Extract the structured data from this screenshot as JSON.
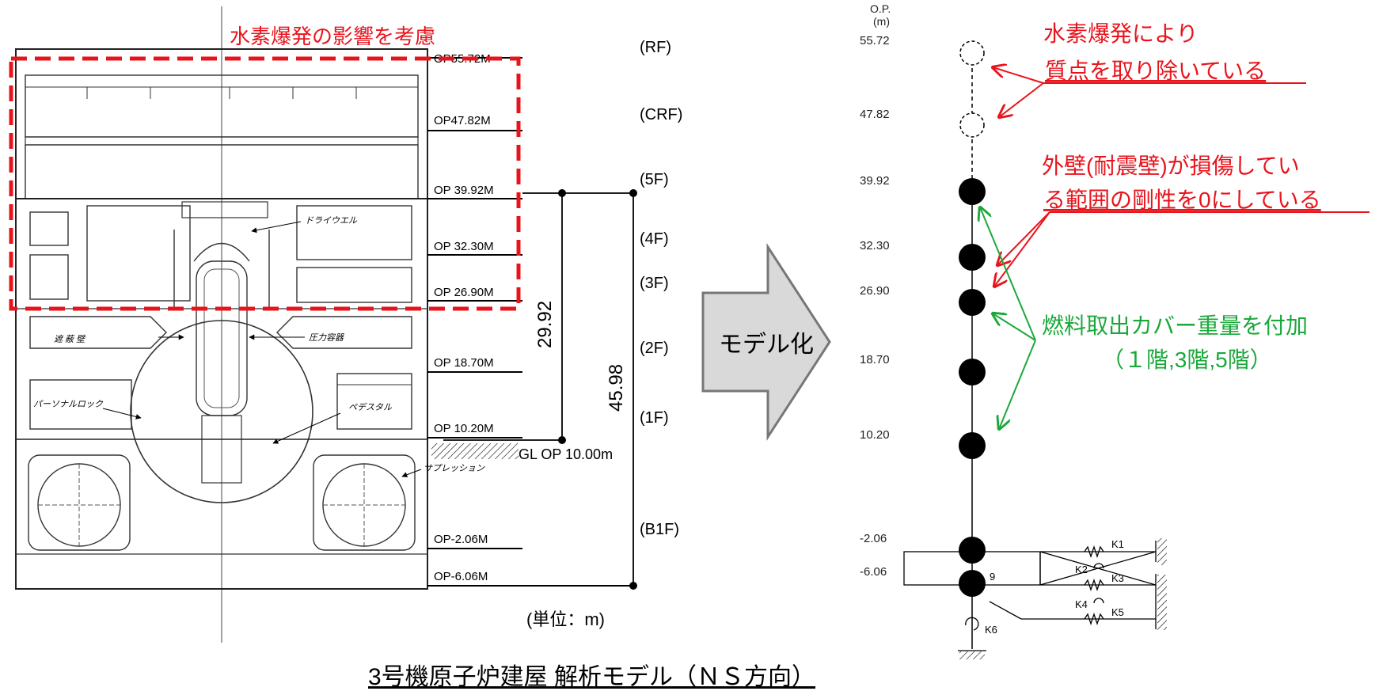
{
  "colors": {
    "annotation_red": "#e8141c",
    "annotation_green": "#1aa83a",
    "arrow_fill": "#d9d9d9",
    "arrow_stroke": "#777777",
    "line": "#000000"
  },
  "left_drawing": {
    "hydrogen_label": "水素爆発の影響を考慮",
    "op_levels": [
      "OP55.72M",
      "OP47.82M",
      "OP 39.92M",
      "OP 32.30M",
      "OP 26.90M",
      "OP 18.70M",
      "OP 10.20M",
      "OP-2.06M",
      "OP-6.06M"
    ],
    "floor_labels": [
      "(RF)",
      "(CRF)",
      "(5F)",
      "(4F)",
      "(3F)",
      "(2F)",
      "(1F)",
      "(B1F)"
    ],
    "callouts": {
      "drywell": "ドライウエル",
      "pressure_vessel": "圧力容器",
      "spent_fuel": "遮 蔽 壁",
      "personnel_lock": "パーソナルロック",
      "pedestal": "ペデスタル",
      "suppression": "サプレッション"
    },
    "dim_small": "29.92",
    "dim_large": "45.98",
    "gl_label": "GL OP 10.00m",
    "unit_label": "(単位：m)"
  },
  "center_arrow": {
    "label": "モデル化"
  },
  "right_model": {
    "header_op": "O.P.",
    "header_unit": "(m)",
    "elevations": [
      "55.72",
      "47.82",
      "39.92",
      "32.30",
      "26.90",
      "18.70",
      "10.20",
      "-2.06",
      "-6.06"
    ],
    "springs": [
      "K1",
      "K2",
      "K3",
      "K4",
      "K5",
      "K6"
    ],
    "node_number": "9",
    "annotations": {
      "removed_line1": "水素爆発により",
      "removed_line2": "質点を取り除いている",
      "stiffness_line1": "外壁(耐震壁)が損傷してい",
      "stiffness_line2": "る範囲の剛性を0にしている",
      "cover_line1": "燃料取出カバー重量を付加",
      "cover_line2": "（１階,3階,5階）"
    }
  },
  "caption": "3号機原子炉建屋  解析モデル（ＮＳ方向）"
}
